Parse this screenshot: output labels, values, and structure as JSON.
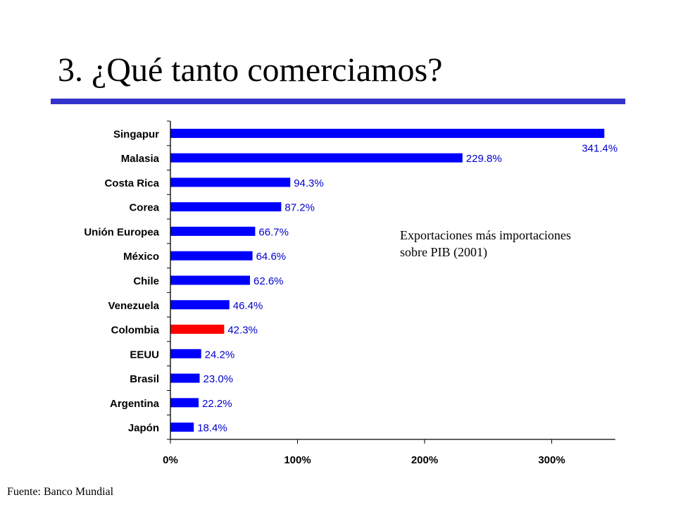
{
  "slide": {
    "title": "3. ¿Qué tanto comerciamos?",
    "rule_color": "#3333cc",
    "annotation_lines": [
      "Exportaciones más importaciones",
      "sobre PIB (2001)"
    ],
    "source": "Fuente: Banco Mundial"
  },
  "chart_data": {
    "type": "bar",
    "orientation": "horizontal",
    "categories": [
      "Singapur",
      "Malasia",
      "Costa Rica",
      "Corea",
      "Unión Europea",
      "México",
      "Chile",
      "Venezuela",
      "Colombia",
      "EEUU",
      "Brasil",
      "Argentina",
      "Japón"
    ],
    "values": [
      341.4,
      229.8,
      94.3,
      87.2,
      66.7,
      64.6,
      62.6,
      46.4,
      42.3,
      24.2,
      23.0,
      22.2,
      18.4
    ],
    "value_labels": [
      "341.4%",
      "229.8%",
      "94.3%",
      "87.2%",
      "66.7%",
      "64.6%",
      "62.6%",
      "46.4%",
      "42.3%",
      "24.2%",
      "23.0%",
      "22.2%",
      "18.4%"
    ],
    "xlim": [
      0,
      350
    ],
    "xticks": [
      0,
      100,
      200,
      300
    ],
    "xtick_labels": [
      "0%",
      "100%",
      "200%",
      "300%"
    ],
    "grid": false,
    "bar_color": "#0000ff",
    "highlight_category": "Colombia",
    "highlight_color": "#ff0000",
    "value_label_color": "#0000cc"
  }
}
